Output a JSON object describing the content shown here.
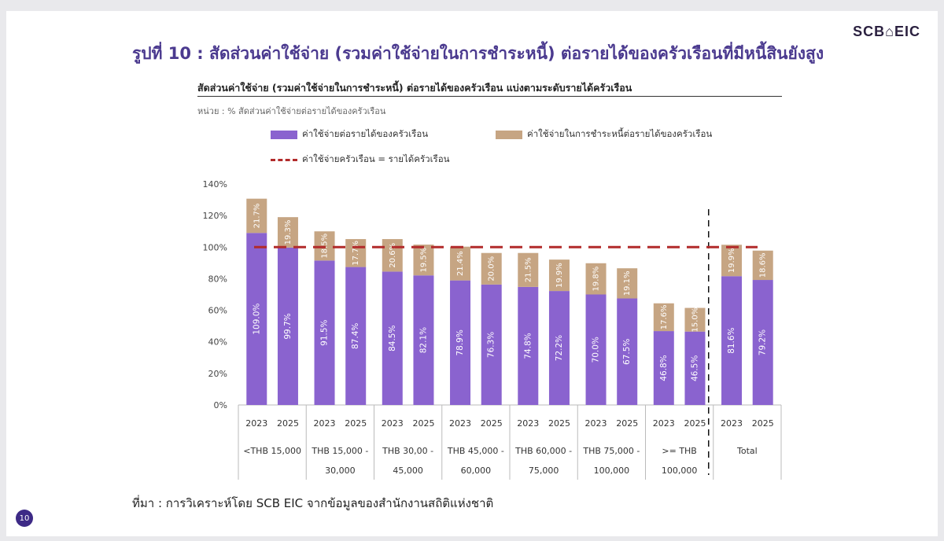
{
  "slide": {
    "logo": "SCB⌂EIC",
    "title": "รูปที่ 10 : สัดส่วนค่าใช้จ่าย (รวมค่าใช้จ่ายในการชำระหนี้) ต่อรายได้ของครัวเรือนที่มีหนี้สินยังสูง",
    "source": "ที่มา : การวิเคราะห์โดย SCB EIC จากข้อมูลของสำนักงานสถิติแห่งชาติ",
    "page_number": "10"
  },
  "chart_data": {
    "type": "bar",
    "stacked": true,
    "title": "สัดส่วนค่าใช้จ่าย (รวมค่าใช้จ่ายในการชำระหนี้) ต่อรายได้ของครัวเรือน แบ่งตามระดับรายได้ครัวเรือน",
    "unit_label": "หน่วย : % สัดส่วนค่าใช้จ่ายต่อรายได้ของครัวเรือน",
    "ylim": [
      0,
      140
    ],
    "y_ticks": [
      "0%",
      "20%",
      "40%",
      "60%",
      "80%",
      "100%",
      "120%",
      "140%"
    ],
    "years": [
      "2023",
      "2025",
      "2023",
      "2025",
      "2023",
      "2025",
      "2023",
      "2025",
      "2023",
      "2025",
      "2023",
      "2025",
      "2023",
      "2025",
      "2023",
      "2025"
    ],
    "groups": [
      {
        "label_line1": "<THB 15,000",
        "label_line2": ""
      },
      {
        "label_line1": "THB 15,000 -",
        "label_line2": "30,000"
      },
      {
        "label_line1": "THB 30,00 -",
        "label_line2": "45,000"
      },
      {
        "label_line1": "THB 45,000 -",
        "label_line2": "60,000"
      },
      {
        "label_line1": "THB 60,000 -",
        "label_line2": "75,000"
      },
      {
        "label_line1": "THB 75,000 -",
        "label_line2": "100,000"
      },
      {
        "label_line1": ">= THB",
        "label_line2": "100,000"
      },
      {
        "label_line1": "Total",
        "label_line2": ""
      }
    ],
    "series": [
      {
        "name": "ค่าใช้จ่ายต่อรายได้ของครัวเรือน",
        "color": "#8a63cf",
        "values": [
          109.0,
          99.7,
          91.5,
          87.4,
          84.5,
          82.1,
          78.9,
          76.3,
          74.8,
          72.2,
          70.0,
          67.5,
          46.8,
          46.5,
          81.6,
          79.2
        ],
        "labels": [
          "109.0%",
          "99.7%",
          "91.5%",
          "87.4%",
          "84.5%",
          "82.1%",
          "78.9%",
          "76.3%",
          "74.8%",
          "72.2%",
          "70.0%",
          "67.5%",
          "46.8%",
          "46.5%",
          "81.6%",
          "79.2%"
        ]
      },
      {
        "name": "ค่าใช้จ่ายในการชำระหนี้ต่อรายได้ของครัวเรือน",
        "color": "#c6a583",
        "values": [
          21.7,
          19.3,
          18.5,
          17.7,
          20.6,
          19.5,
          21.4,
          20.0,
          21.5,
          19.9,
          19.8,
          19.1,
          17.6,
          15.0,
          19.9,
          18.6
        ],
        "labels": [
          "21.7%",
          "19.3%",
          "18.5%",
          "17.7%",
          "20.6%",
          "19.5%",
          "21.4%",
          "20.0%",
          "21.5%",
          "19.9%",
          "19.8%",
          "19.1%",
          "17.6%",
          "15.0%",
          "19.9%",
          "18.6%"
        ]
      }
    ],
    "reference_line": {
      "name": "ค่าใช้จ่ายครัวเรือน = รายได้ครัวเรือน",
      "value": 100,
      "color": "#b22b2b"
    },
    "legend_placement": "top",
    "grid": false
  }
}
